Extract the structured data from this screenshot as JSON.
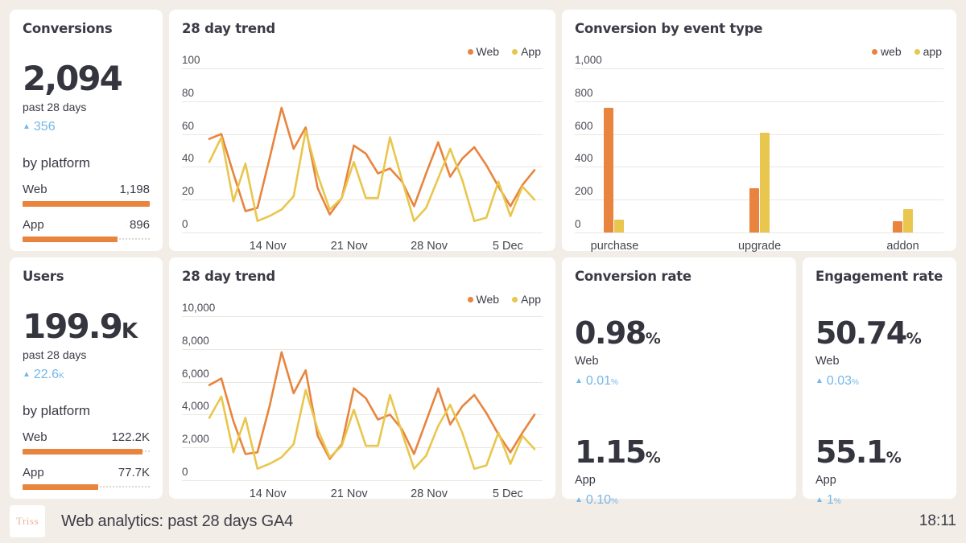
{
  "palette": {
    "background": "#F3EDE7",
    "card": "#FFFFFF",
    "orange": "#E8843E",
    "yellow": "#E9C64D",
    "blue": "#74B7E8",
    "dark_text": "#3B3B47"
  },
  "cards": {
    "conversions": {
      "title": "Conversions",
      "big": "2,094",
      "big_suffix": "",
      "period": "past 28 days",
      "delta": "356",
      "delta_suffix": "",
      "section": "by platform",
      "axis_max": 1200,
      "platforms": [
        {
          "label": "Web",
          "value": "1,198",
          "num": 1198
        },
        {
          "label": "App",
          "value": "896",
          "num": 896
        }
      ]
    },
    "users": {
      "title": "Users",
      "big": "199.9",
      "big_suffix": "K",
      "period": "past 28 days",
      "delta": "22.6",
      "delta_suffix": "K",
      "section": "by platform",
      "axis_max": 130000,
      "platforms": [
        {
          "label": "Web",
          "value": "122.2K",
          "num": 122200
        },
        {
          "label": "App",
          "value": "77.7K",
          "num": 77700
        }
      ]
    },
    "trend_conversions_title": "28 day trend",
    "trend_users_title": "28 day trend",
    "events_title": "Conversion by event type",
    "conversion_rate": {
      "title": "Conversion rate",
      "blocks": [
        {
          "big": "0.98",
          "suffix": "%",
          "label": "Web",
          "delta": "0.01",
          "delta_suffix": "%"
        },
        {
          "big": "1.15",
          "suffix": "%",
          "label": "App",
          "delta": "0.10",
          "delta_suffix": "%"
        }
      ]
    },
    "engagement_rate": {
      "title": "Engagement rate",
      "blocks": [
        {
          "big": "50.74",
          "suffix": "%",
          "label": "Web",
          "delta": "0.03",
          "delta_suffix": "%"
        },
        {
          "big": "55.1",
          "suffix": "%",
          "label": "App",
          "delta": "1",
          "delta_suffix": "%"
        }
      ]
    }
  },
  "chart_data": [
    {
      "type": "line",
      "title": "28 day trend",
      "ylim": [
        0,
        100
      ],
      "y_ticks": [
        "100",
        "80",
        "60",
        "40",
        "20",
        "0"
      ],
      "x_ticks": [
        {
          "label": "14 Nov",
          "f": 0.18
        },
        {
          "label": "21 Nov",
          "f": 0.43
        },
        {
          "label": "28 Nov",
          "f": 0.676
        },
        {
          "label": "5 Dec",
          "f": 0.918
        }
      ],
      "legend_position": "top-right",
      "grid": true,
      "series": [
        {
          "name": "Web",
          "color": "#E8843E",
          "values": [
            57,
            60,
            36,
            13,
            15,
            45,
            76,
            51,
            64,
            27,
            11,
            21,
            53,
            48,
            36,
            39,
            31,
            16,
            36,
            55,
            34,
            45,
            52,
            41,
            28,
            16,
            29,
            38
          ]
        },
        {
          "name": "App",
          "color": "#E9C64D",
          "values": [
            43,
            58,
            19,
            42,
            7,
            10,
            14,
            22,
            62,
            35,
            14,
            21,
            43,
            21,
            21,
            58,
            32,
            7,
            15,
            33,
            51,
            32,
            7,
            9,
            31,
            10,
            28,
            20
          ]
        }
      ]
    },
    {
      "type": "line",
      "title": "28 day trend",
      "ylim": [
        0,
        10000
      ],
      "y_ticks": [
        "10,000",
        "8,000",
        "6,000",
        "4,000",
        "2,000",
        "0"
      ],
      "x_ticks": [
        {
          "label": "14 Nov",
          "f": 0.18
        },
        {
          "label": "21 Nov",
          "f": 0.43
        },
        {
          "label": "28 Nov",
          "f": 0.676
        },
        {
          "label": "5 Dec",
          "f": 0.918
        }
      ],
      "legend_position": "top-right",
      "grid": true,
      "series": [
        {
          "name": "Web",
          "color": "#E8843E",
          "values": [
            5800,
            6200,
            3600,
            1600,
            1700,
            4500,
            7800,
            5300,
            6700,
            2700,
            1300,
            2200,
            5600,
            5000,
            3700,
            4000,
            3100,
            1600,
            3600,
            5600,
            3400,
            4500,
            5200,
            4100,
            2800,
            1700,
            2900,
            4000
          ]
        },
        {
          "name": "App",
          "color": "#E9C64D",
          "values": [
            3800,
            5100,
            1700,
            3800,
            700,
            1000,
            1400,
            2200,
            5500,
            3100,
            1400,
            2100,
            4300,
            2100,
            2100,
            5200,
            2900,
            700,
            1500,
            3300,
            4600,
            2900,
            700,
            900,
            2900,
            1000,
            2700,
            1900
          ]
        }
      ]
    },
    {
      "type": "bar",
      "title": "Conversion by event type",
      "ylim": [
        0,
        1000
      ],
      "y_ticks": [
        "1,000",
        "800",
        "600",
        "400",
        "200",
        "0"
      ],
      "categories": [
        {
          "label": "purchase",
          "f": 0.035
        },
        {
          "label": "upgrade",
          "f": 0.47
        },
        {
          "label": "addon",
          "f": 0.9
        }
      ],
      "legend_position": "top-right",
      "grid": true,
      "series": [
        {
          "name": "web",
          "color": "#E8843E",
          "values": [
            760,
            270,
            70
          ]
        },
        {
          "name": "app",
          "color": "#E9C64D",
          "values": [
            80,
            610,
            140
          ]
        }
      ]
    }
  ],
  "footer": {
    "logo": "Triss",
    "title": "Web analytics: past 28 days GA4",
    "time": "18:11"
  }
}
